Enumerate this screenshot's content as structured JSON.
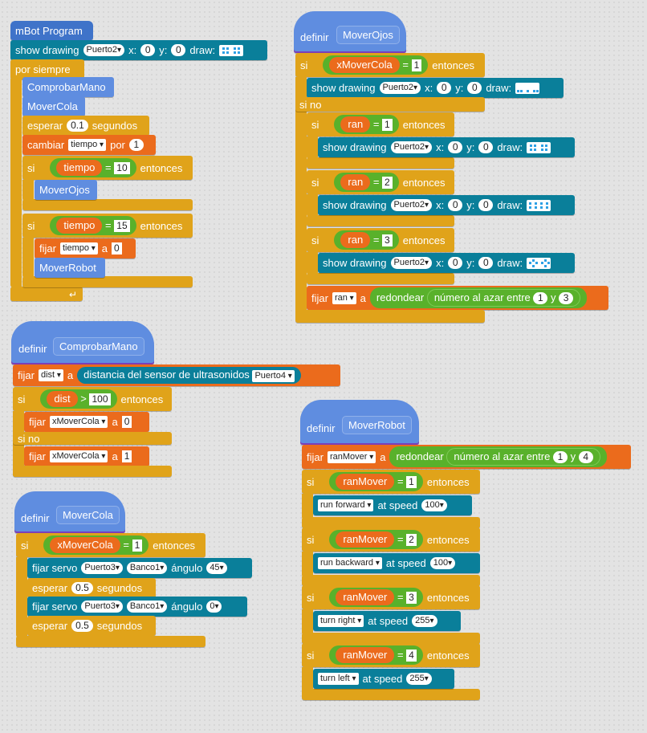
{
  "words": {
    "show_drawing": "show drawing",
    "x": "x:",
    "y": "y:",
    "draw": "draw:",
    "si": "si",
    "si_no": "si no",
    "entonces": "entonces",
    "fijar": "fijar",
    "a": "a",
    "definir": "definir",
    "equals": "=",
    "gt": ">",
    "redondear": "redondear",
    "random": "número al azar entre",
    "y_conj": "y",
    "esperar": "esperar",
    "segundos": "segundos",
    "cambiar": "cambiar",
    "por": "por",
    "at_speed": "at speed",
    "fijar_servo": "fijar servo",
    "angulo": "ángulo",
    "distancia": "distancia del sensor de ultrasonidos"
  },
  "main": {
    "hat": "mBot Program",
    "port": "Puerto2",
    "x": "0",
    "y": "0",
    "forever": "por siempre",
    "call1": "ComprobarMano",
    "call2": "MoverCola",
    "wait": "0.1",
    "var": "tiempo",
    "change_by": "1",
    "cond1": "10",
    "call3": "MoverOjos",
    "cond2": "15",
    "set_var": "tiempo",
    "set_val": "0",
    "call4": "MoverRobot"
  },
  "ojos": {
    "name": "MoverOjos",
    "var": "xMoverCola",
    "val": "1",
    "port": "Puerto2",
    "x": "0",
    "y": "0",
    "ran": "ran",
    "n1": "1",
    "n2": "2",
    "n3": "3",
    "from": "1",
    "to": "3"
  },
  "mano": {
    "name": "ComprobarMano",
    "var": "dist",
    "port": "Puerto4",
    "threshold": "100",
    "target": "xMoverCola",
    "v0": "0",
    "v1": "1"
  },
  "cola": {
    "name": "MoverCola",
    "var": "xMoverCola",
    "val": "1",
    "port": "Puerto3",
    "bank": "Banco1",
    "angle1": "45",
    "wait": "0.5",
    "angle2": "0"
  },
  "robot": {
    "name": "MoverRobot",
    "var": "ranMover",
    "from": "1",
    "to": "4",
    "n1": "1",
    "n2": "2",
    "n3": "3",
    "n4": "4",
    "act1": "run forward",
    "sp1": "100",
    "act2": "run backward",
    "sp2": "100",
    "act3": "turn right",
    "sp3": "255",
    "act4": "turn left",
    "sp4": "255"
  }
}
